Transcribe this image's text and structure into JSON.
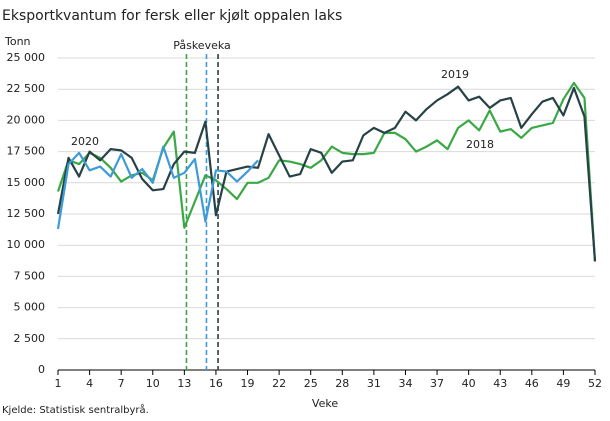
{
  "chart_data": {
    "type": "line",
    "title": "Eksportkvantum for fersk eller kjølt oppalen laks",
    "y_label": "Tonn",
    "x_label": "Veke",
    "source": "Kjelde: Statistisk sentralbyrå.",
    "easter_label": "Påskeveka",
    "x": [
      1,
      2,
      3,
      4,
      5,
      6,
      7,
      8,
      9,
      10,
      11,
      12,
      13,
      14,
      15,
      16,
      17,
      18,
      19,
      20,
      21,
      22,
      23,
      24,
      25,
      26,
      27,
      28,
      29,
      30,
      31,
      32,
      33,
      34,
      35,
      36,
      37,
      38,
      39,
      40,
      41,
      42,
      43,
      44,
      45,
      46,
      47,
      48,
      49,
      50,
      51,
      52
    ],
    "series": [
      {
        "name": "2018",
        "color": "#3aa845",
        "values": [
          14300,
          16800,
          16500,
          17400,
          17000,
          16200,
          15100,
          15600,
          15800,
          15200,
          17800,
          19100,
          11400,
          13500,
          15600,
          15200,
          14500,
          13700,
          15000,
          15000,
          15400,
          16800,
          16700,
          16500,
          16200,
          16800,
          17900,
          17400,
          17300,
          17300,
          17400,
          19000,
          19000,
          18500,
          17500,
          17900,
          18400,
          17700,
          19400,
          20000,
          19200,
          20800,
          19100,
          19300,
          18600,
          19400,
          19600,
          19800,
          21700,
          23000,
          21800,
          8700
        ]
      },
      {
        "name": "2019",
        "color": "#274247",
        "values": [
          12500,
          17000,
          15500,
          17500,
          16800,
          17700,
          17600,
          17000,
          15300,
          14400,
          14500,
          16500,
          17500,
          17400,
          19900,
          12400,
          15900,
          16100,
          16300,
          16200,
          18900,
          17200,
          15500,
          15700,
          17700,
          17400,
          15800,
          16700,
          16800,
          18800,
          19400,
          19000,
          19400,
          20700,
          20000,
          20900,
          21600,
          22100,
          22700,
          21600,
          21900,
          21000,
          21600,
          21800,
          19400,
          20500,
          21500,
          21800,
          20400,
          22600,
          20300,
          8700
        ]
      },
      {
        "name": "2020",
        "color": "#3f9bd6",
        "values": [
          11300,
          16500,
          17400,
          16000,
          16300,
          15500,
          17300,
          15400,
          16100,
          15000,
          17900,
          15400,
          15800,
          16900,
          11900,
          16000,
          15900,
          15100,
          15900,
          16800,
          null,
          null,
          null,
          null,
          null,
          null,
          null,
          null,
          null,
          null,
          null,
          null,
          null,
          null,
          null,
          null,
          null,
          null,
          null,
          null,
          null,
          null,
          null,
          null,
          null,
          null,
          null,
          null,
          null,
          null,
          null,
          null
        ]
      }
    ],
    "easter_lines": [
      {
        "x": 13.2,
        "color": "#3aa845"
      },
      {
        "x": 15.1,
        "color": "#3f9bd6"
      },
      {
        "x": 16.2,
        "color": "#274247"
      }
    ],
    "xlim": [
      1,
      52
    ],
    "xticks": [
      1,
      4,
      7,
      10,
      13,
      16,
      19,
      22,
      25,
      28,
      31,
      34,
      37,
      40,
      43,
      46,
      49,
      52
    ],
    "ylim": [
      0,
      25000
    ],
    "yticks": [
      0,
      {
        "value": 2500,
        "label": "2 500"
      },
      {
        "value": 5000,
        "label": "5 000"
      },
      {
        "value": 7500,
        "label": "7 500"
      },
      {
        "value": 10000,
        "label": "10 000"
      },
      {
        "value": 12500,
        "label": "12 500"
      },
      {
        "value": 15000,
        "label": "15 000"
      },
      {
        "value": 17500,
        "label": "17 500"
      },
      {
        "value": 20000,
        "label": "20 000"
      },
      {
        "value": 22500,
        "label": "22 500"
      },
      {
        "value": 25000,
        "label": "25 000"
      }
    ],
    "grid": true
  }
}
